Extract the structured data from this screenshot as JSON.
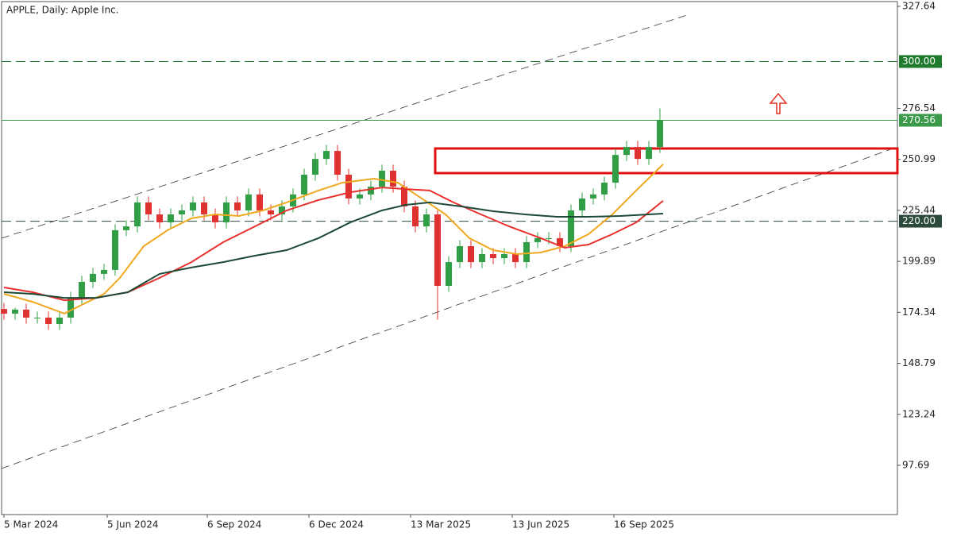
{
  "chart_data": {
    "type": "candlestick",
    "title": "APPLE, Daily:  Apple Inc.",
    "x": [
      0,
      7,
      14,
      21,
      28,
      35,
      42,
      49,
      56,
      63,
      70,
      77,
      84,
      91,
      98,
      105,
      112,
      119,
      126,
      133,
      140,
      147,
      154,
      161,
      168,
      175,
      182,
      189,
      196,
      203,
      210,
      217,
      224,
      231,
      238,
      245,
      252,
      259,
      266,
      273,
      280,
      287,
      294,
      301,
      308,
      315,
      322,
      329,
      336,
      343,
      350,
      357,
      364,
      371,
      378,
      385,
      392,
      399,
      406,
      413
    ],
    "open": [
      176,
      173.7,
      175.7,
      171.7,
      171.7,
      168.5,
      171.7,
      181.6,
      189.6,
      193.6,
      195.6,
      215.5,
      217.4,
      229.4,
      223.4,
      219.4,
      223.4,
      225.4,
      229.4,
      223.4,
      219.4,
      229.4,
      225.4,
      233.4,
      225.4,
      223.4,
      227.4,
      233.4,
      243.3,
      251.2,
      255.2,
      243.3,
      231.4,
      233.4,
      237.3,
      245.3,
      237.3,
      227.4,
      217.4,
      223.4,
      187.6,
      199.5,
      207.5,
      199.5,
      203.5,
      201.5,
      203.5,
      199.5,
      209.5,
      211.5,
      211.5,
      207.5,
      225.4,
      231.4,
      233.4,
      239.3,
      253.2,
      257.2,
      251.2,
      257.2
    ],
    "high": [
      179,
      176.7,
      178.7,
      174.7,
      174.7,
      174.7,
      184.6,
      192.6,
      196.6,
      198.6,
      218.5,
      220.4,
      232.4,
      232.4,
      226.4,
      226.4,
      228.4,
      232.4,
      232.4,
      226.4,
      232.4,
      232.4,
      236.4,
      236.4,
      228.4,
      230.4,
      236.4,
      246.3,
      254.2,
      258.2,
      258.2,
      246.3,
      236.4,
      240.3,
      248.3,
      248.3,
      240.3,
      230.4,
      226.4,
      226.4,
      202.5,
      210.5,
      210.5,
      206.5,
      206.5,
      206.5,
      206.5,
      212.5,
      214.5,
      214.5,
      214.5,
      228.4,
      234.4,
      236.4,
      242.3,
      256.2,
      260.2,
      260.2,
      260.2,
      276.5
    ],
    "low": [
      170.7,
      170.7,
      168.7,
      168.7,
      165.5,
      165.5,
      168.7,
      178.6,
      186.6,
      190.6,
      192.6,
      212.5,
      214.4,
      220.4,
      216.4,
      216.4,
      220.4,
      222.4,
      220.4,
      216.4,
      216.4,
      222.4,
      222.4,
      222.4,
      220.4,
      220.4,
      224.4,
      230.4,
      240.3,
      248.2,
      240.3,
      228.4,
      228.4,
      230.4,
      234.3,
      234.3,
      224.4,
      214.4,
      214.4,
      170.7,
      184.6,
      196.5,
      196.5,
      196.5,
      198.5,
      198.5,
      196.5,
      196.5,
      206.5,
      208.5,
      204.5,
      204.5,
      222.4,
      228.4,
      230.4,
      236.3,
      250.2,
      248.2,
      248.2,
      254.2
    ],
    "close": [
      173.7,
      175.7,
      171.7,
      171.7,
      168.5,
      171.7,
      181.6,
      189.6,
      193.6,
      195.6,
      215.5,
      217.4,
      229.4,
      223.4,
      219.4,
      223.4,
      225.4,
      229.4,
      223.4,
      219.4,
      229.4,
      225.4,
      233.4,
      225.4,
      223.4,
      227.4,
      233.4,
      243.3,
      251.2,
      255.2,
      243.3,
      231.4,
      233.4,
      237.3,
      245.3,
      237.3,
      227.4,
      217.4,
      223.4,
      187.6,
      199.5,
      207.5,
      199.5,
      203.5,
      201.5,
      203.5,
      199.5,
      209.5,
      211.5,
      211.5,
      207.5,
      225.4,
      231.4,
      233.4,
      239.3,
      253.2,
      257.2,
      251.2,
      257.2,
      270.56
    ],
    "up_color": "#2f9e44",
    "down_color": "#e03131",
    "lines": [
      {
        "color": "#f0a81e",
        "x": [
          0,
          18,
          38,
          48,
          63,
          73,
          88,
          103,
          118,
          133,
          148,
          163,
          178,
          198,
          213,
          233,
          248,
          263,
          278,
          293,
          308,
          323,
          338,
          353,
          368,
          383,
          398,
          415
        ],
        "values": [
          183.6,
          179.6,
          173.7,
          177.7,
          183.6,
          191.6,
          207.5,
          215.5,
          221.4,
          223.4,
          222.6,
          225.4,
          229.4,
          235.4,
          239.3,
          241.3,
          239.3,
          231.4,
          223.4,
          211.5,
          205.5,
          203.5,
          204.3,
          207.5,
          213.5,
          223.4,
          235.4,
          248.5
        ]
      },
      {
        "color": "#e8302d",
        "x": [
          0,
          18,
          38,
          58,
          78,
          98,
          118,
          138,
          158,
          178,
          198,
          218,
          238,
          253,
          268,
          283,
          298,
          318,
          338,
          353,
          368,
          383,
          398,
          415
        ],
        "values": [
          186.8,
          184.4,
          180.4,
          181.6,
          184.4,
          191.6,
          199.5,
          209.5,
          217.4,
          225.4,
          230.6,
          234.5,
          236.9,
          236.1,
          235.4,
          229.4,
          224.2,
          217.4,
          211.5,
          206.7,
          208.3,
          213.5,
          219.4,
          230.2
        ]
      },
      {
        "color": "#1c4a37",
        "x": [
          0,
          18,
          38,
          58,
          78,
          98,
          118,
          138,
          158,
          178,
          198,
          218,
          238,
          253,
          268,
          288,
          308,
          328,
          348,
          368,
          388,
          415
        ],
        "values": [
          184.4,
          183.6,
          181.6,
          181.6,
          184.4,
          193.6,
          196.8,
          199.5,
          202.7,
          205.5,
          211.5,
          219.4,
          225.4,
          228.2,
          229.4,
          227.4,
          225.0,
          223.4,
          222.2,
          222.2,
          222.6,
          223.8
        ]
      }
    ],
    "xlim": [
      -1.5,
      562.5
    ],
    "xticks": [
      {
        "value": 0,
        "label": "5 Mar 2024"
      },
      {
        "value": 65,
        "label": "5 Jun 2024"
      },
      {
        "value": 128,
        "label": "6 Sep 2024"
      },
      {
        "value": 192,
        "label": "6 Dec 2024"
      },
      {
        "value": 256,
        "label": "13 Mar 2025"
      },
      {
        "value": 320,
        "label": "13 Jun 2025"
      },
      {
        "value": 384,
        "label": "16 Sep 2025"
      }
    ],
    "ylim": [
      73.02,
      330.03
    ],
    "yticks": [
      327.64,
      276.54,
      250.99,
      225.44,
      199.89,
      174.34,
      148.79,
      123.24,
      97.69
    ],
    "levels": [
      {
        "value": 300,
        "label": "300.00",
        "color": "#1f7a2e"
      },
      {
        "value": 220,
        "label": "220.00",
        "color": "#2b4a3c"
      }
    ],
    "price_line": 270.56,
    "price_color": "#3a9a4a"
  }
}
